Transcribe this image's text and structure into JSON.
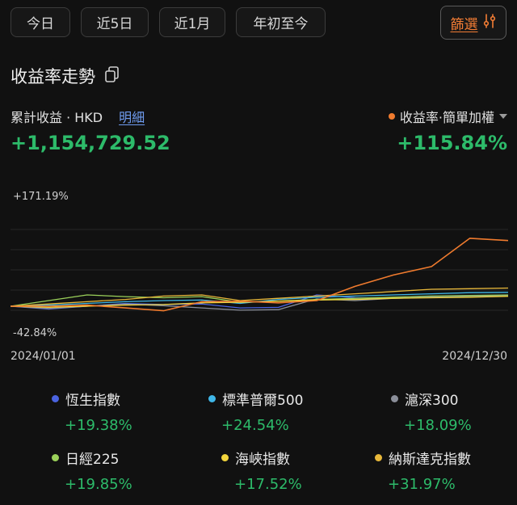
{
  "periods": [
    "今日",
    "近5日",
    "近1月",
    "年初至今"
  ],
  "filter_label": "篩選",
  "title": "收益率走勢",
  "summary": {
    "cumulative_label": "累計收益 · HKD",
    "detail_link": "明細",
    "cumulative_value": "+1,154,729.52",
    "return_type_label": "收益率·簡單加權",
    "return_value": "+115.84%"
  },
  "axis": {
    "y_max_label": "+171.19%",
    "y_min_label": "-42.84%",
    "x_start": "2024/01/01",
    "x_end": "2024/12/30"
  },
  "chart_data": {
    "type": "line",
    "title": "",
    "xlabel": "",
    "ylabel": "",
    "ylim": [
      -42.84,
      171.19
    ],
    "x": [
      "2024/01/01",
      "2024/02/15",
      "2024/04/01",
      "2024/05/15",
      "2024/06/30",
      "2024/08/01",
      "2024/08/20",
      "2024/09/15",
      "2024/10/01",
      "2024/10/20",
      "2024/11/10",
      "2024/12/01",
      "2024/12/15",
      "2024/12/30"
    ],
    "series": [
      {
        "name": "",
        "color": "#f07b2e",
        "values": [
          0,
          0,
          2,
          -3,
          -8,
          8,
          9,
          6,
          10,
          35,
          55,
          70,
          120,
          116
        ]
      },
      {
        "name": "恆生指數",
        "color": "#4a63e0",
        "values": [
          0,
          -5,
          0,
          5,
          3,
          4,
          -3,
          -2,
          20,
          15,
          14,
          16,
          17,
          19.4
        ]
      },
      {
        "name": "標準普爾500",
        "color": "#3fb7e8",
        "values": [
          0,
          2,
          5,
          8,
          10,
          11,
          5,
          12,
          16,
          18,
          20,
          22,
          24,
          24.5
        ]
      },
      {
        "name": "滬深300",
        "color": "#8a8e99",
        "values": [
          0,
          -4,
          0,
          4,
          1,
          -3,
          -7,
          -6,
          13,
          10,
          14,
          16,
          17,
          18.1
        ]
      },
      {
        "name": "日經225",
        "color": "#9bd15a",
        "values": [
          0,
          10,
          20,
          17,
          15,
          17,
          7,
          9,
          12,
          14,
          16,
          18,
          19,
          19.9
        ]
      },
      {
        "name": "海峽指數",
        "color": "#f2d53c",
        "values": [
          0,
          -2,
          0,
          2,
          3,
          6,
          7,
          9,
          11,
          12,
          14,
          15,
          16,
          17.5
        ]
      },
      {
        "name": "納斯達克指數",
        "color": "#e8b83a",
        "values": [
          0,
          4,
          8,
          12,
          18,
          20,
          10,
          14,
          18,
          22,
          26,
          30,
          31,
          32
        ]
      }
    ]
  },
  "legend": [
    {
      "name": "恆生指數",
      "value": "+19.38%",
      "color": "#4a63e0"
    },
    {
      "name": "標準普爾500",
      "value": "+24.54%",
      "color": "#3fb7e8"
    },
    {
      "name": "滬深300",
      "value": "+18.09%",
      "color": "#8a8e99"
    },
    {
      "name": "日經225",
      "value": "+19.85%",
      "color": "#9bd15a"
    },
    {
      "name": "海峽指數",
      "value": "+17.52%",
      "color": "#f2d53c"
    },
    {
      "name": "納斯達克指數",
      "value": "+31.97%",
      "color": "#e8b83a"
    }
  ],
  "accent_colors": {
    "gain": "#2dbb6a",
    "orange": "#f07b2e",
    "link": "#6f9cf0"
  }
}
